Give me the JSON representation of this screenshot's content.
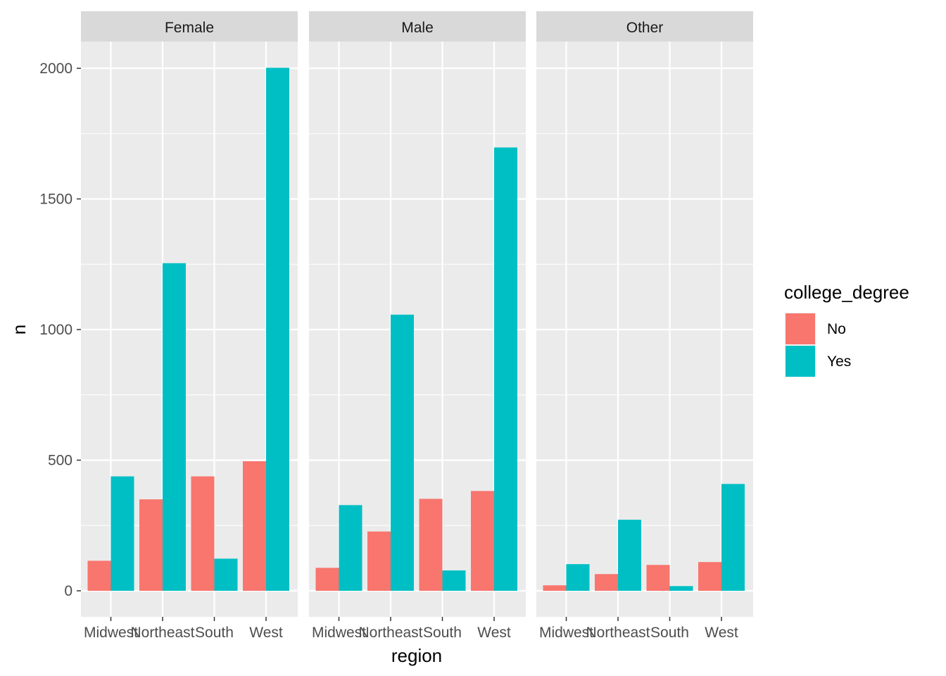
{
  "chart_data": {
    "type": "bar",
    "facet_variable": "gender",
    "facets": [
      "Female",
      "Male",
      "Other"
    ],
    "categories": [
      "Midwest",
      "Northeast",
      "South",
      "West"
    ],
    "xlabel": "region",
    "ylabel": "n",
    "ylim": [
      -95,
      2095
    ],
    "yticks": [
      0,
      500,
      1000,
      1500,
      2000
    ],
    "grid": true,
    "legend": {
      "title": "college_degree",
      "position": "right",
      "entries": [
        "No",
        "Yes"
      ]
    },
    "series": [
      {
        "name": "No",
        "color": "#F8766D",
        "values": {
          "Female": [
            115,
            350,
            438,
            496
          ],
          "Male": [
            88,
            227,
            352,
            382
          ],
          "Other": [
            21,
            64,
            99,
            110
          ]
        }
      },
      {
        "name": "Yes",
        "color": "#00BFC4",
        "values": {
          "Female": [
            438,
            1254,
            123,
            2002
          ],
          "Male": [
            328,
            1057,
            78,
            1697
          ],
          "Other": [
            102,
            272,
            18,
            409
          ]
        }
      }
    ]
  }
}
